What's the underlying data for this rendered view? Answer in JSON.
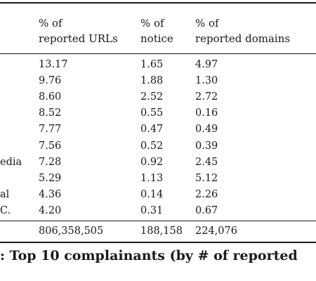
{
  "table": {
    "headers": [
      {
        "line1": "% of",
        "line2": "reported URLs"
      },
      {
        "line1": "% of",
        "line2": "notice"
      },
      {
        "line1": "% of",
        "line2": "reported domains"
      }
    ],
    "rows": [
      {
        "name": "",
        "urls": "13.17",
        "notice": "1.65",
        "domains": "4.97"
      },
      {
        "name": "",
        "urls": "9.76",
        "notice": "1.88",
        "domains": "1.30"
      },
      {
        "name": "",
        "urls": "8.60",
        "notice": "2.52",
        "domains": "2.72"
      },
      {
        "name": "",
        "urls": "8.52",
        "notice": "0.55",
        "domains": "0.16"
      },
      {
        "name": "",
        "urls": "7.77",
        "notice": "0.47",
        "domains": "0.49"
      },
      {
        "name": "",
        "urls": "7.56",
        "notice": "0.52",
        "domains": "0.39"
      },
      {
        "name": "edia",
        "urls": "7.28",
        "notice": "0.92",
        "domains": "2.45"
      },
      {
        "name": "",
        "urls": "5.29",
        "notice": "1.13",
        "domains": "5.12"
      },
      {
        "name": "al",
        "urls": "4.36",
        "notice": "0.14",
        "domains": "2.26"
      },
      {
        "name": "C.",
        "urls": "4.20",
        "notice": "0.31",
        "domains": "0.67"
      }
    ],
    "totals": {
      "urls": "806,358,505",
      "notice": "188,158",
      "domains": "224,076"
    }
  },
  "caption": ": Top 10 complainants (by # of reported"
}
